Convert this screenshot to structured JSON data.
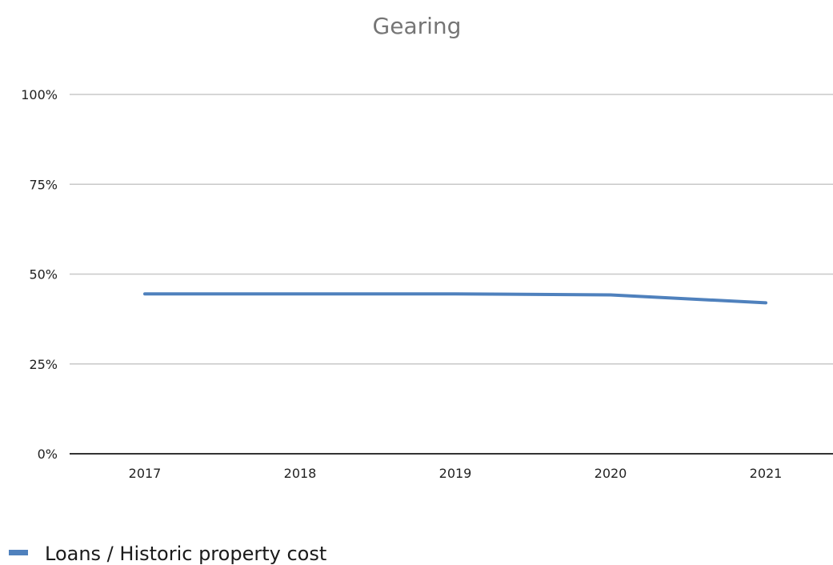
{
  "chart_data": {
    "type": "line",
    "title": "Gearing",
    "xlabel": "",
    "ylabel": "",
    "categories": [
      "2017",
      "2018",
      "2019",
      "2020",
      "2021"
    ],
    "y_ticks": [
      "0%",
      "25%",
      "50%",
      "75%",
      "100%"
    ],
    "ylim": [
      0,
      100
    ],
    "grid": true,
    "legend_position": "bottom-left",
    "series": [
      {
        "name": "Loans / Historic property cost",
        "color": "#4f81bd",
        "values": [
          44.5,
          44.5,
          44.5,
          44.2,
          42.0
        ]
      }
    ]
  }
}
